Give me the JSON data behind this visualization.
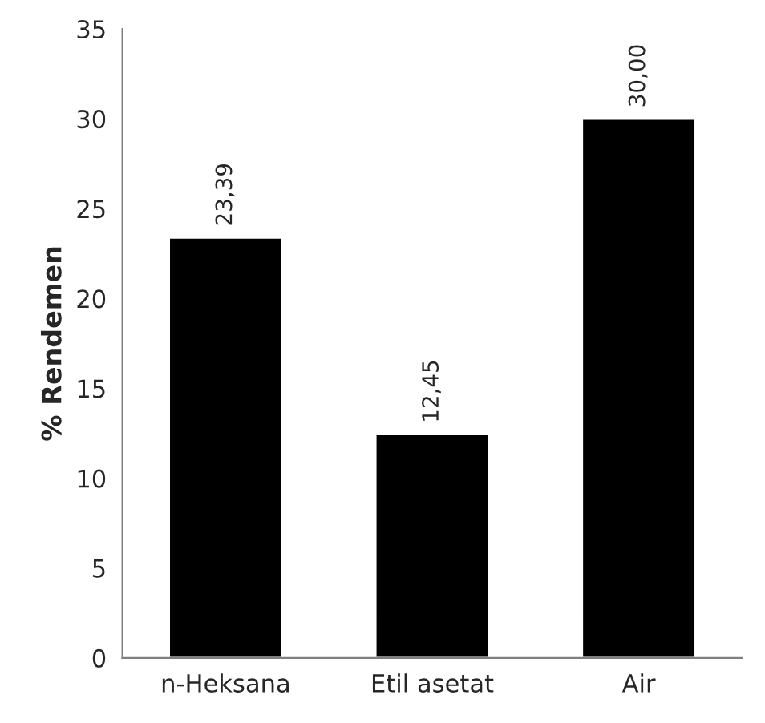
{
  "chart_data": {
    "type": "bar",
    "ylabel": "% Rendemen",
    "categories": [
      "n-Heksana",
      "Etil asetat",
      "Air"
    ],
    "values": [
      23.39,
      12.45,
      30.0
    ],
    "value_labels": [
      "23,39",
      "12,45",
      "30,00"
    ],
    "color": "#000000",
    "ylim": [
      0,
      35
    ],
    "yticks": [
      0,
      5,
      10,
      15,
      20,
      25,
      30,
      35
    ],
    "grid": false,
    "legend": false
  }
}
